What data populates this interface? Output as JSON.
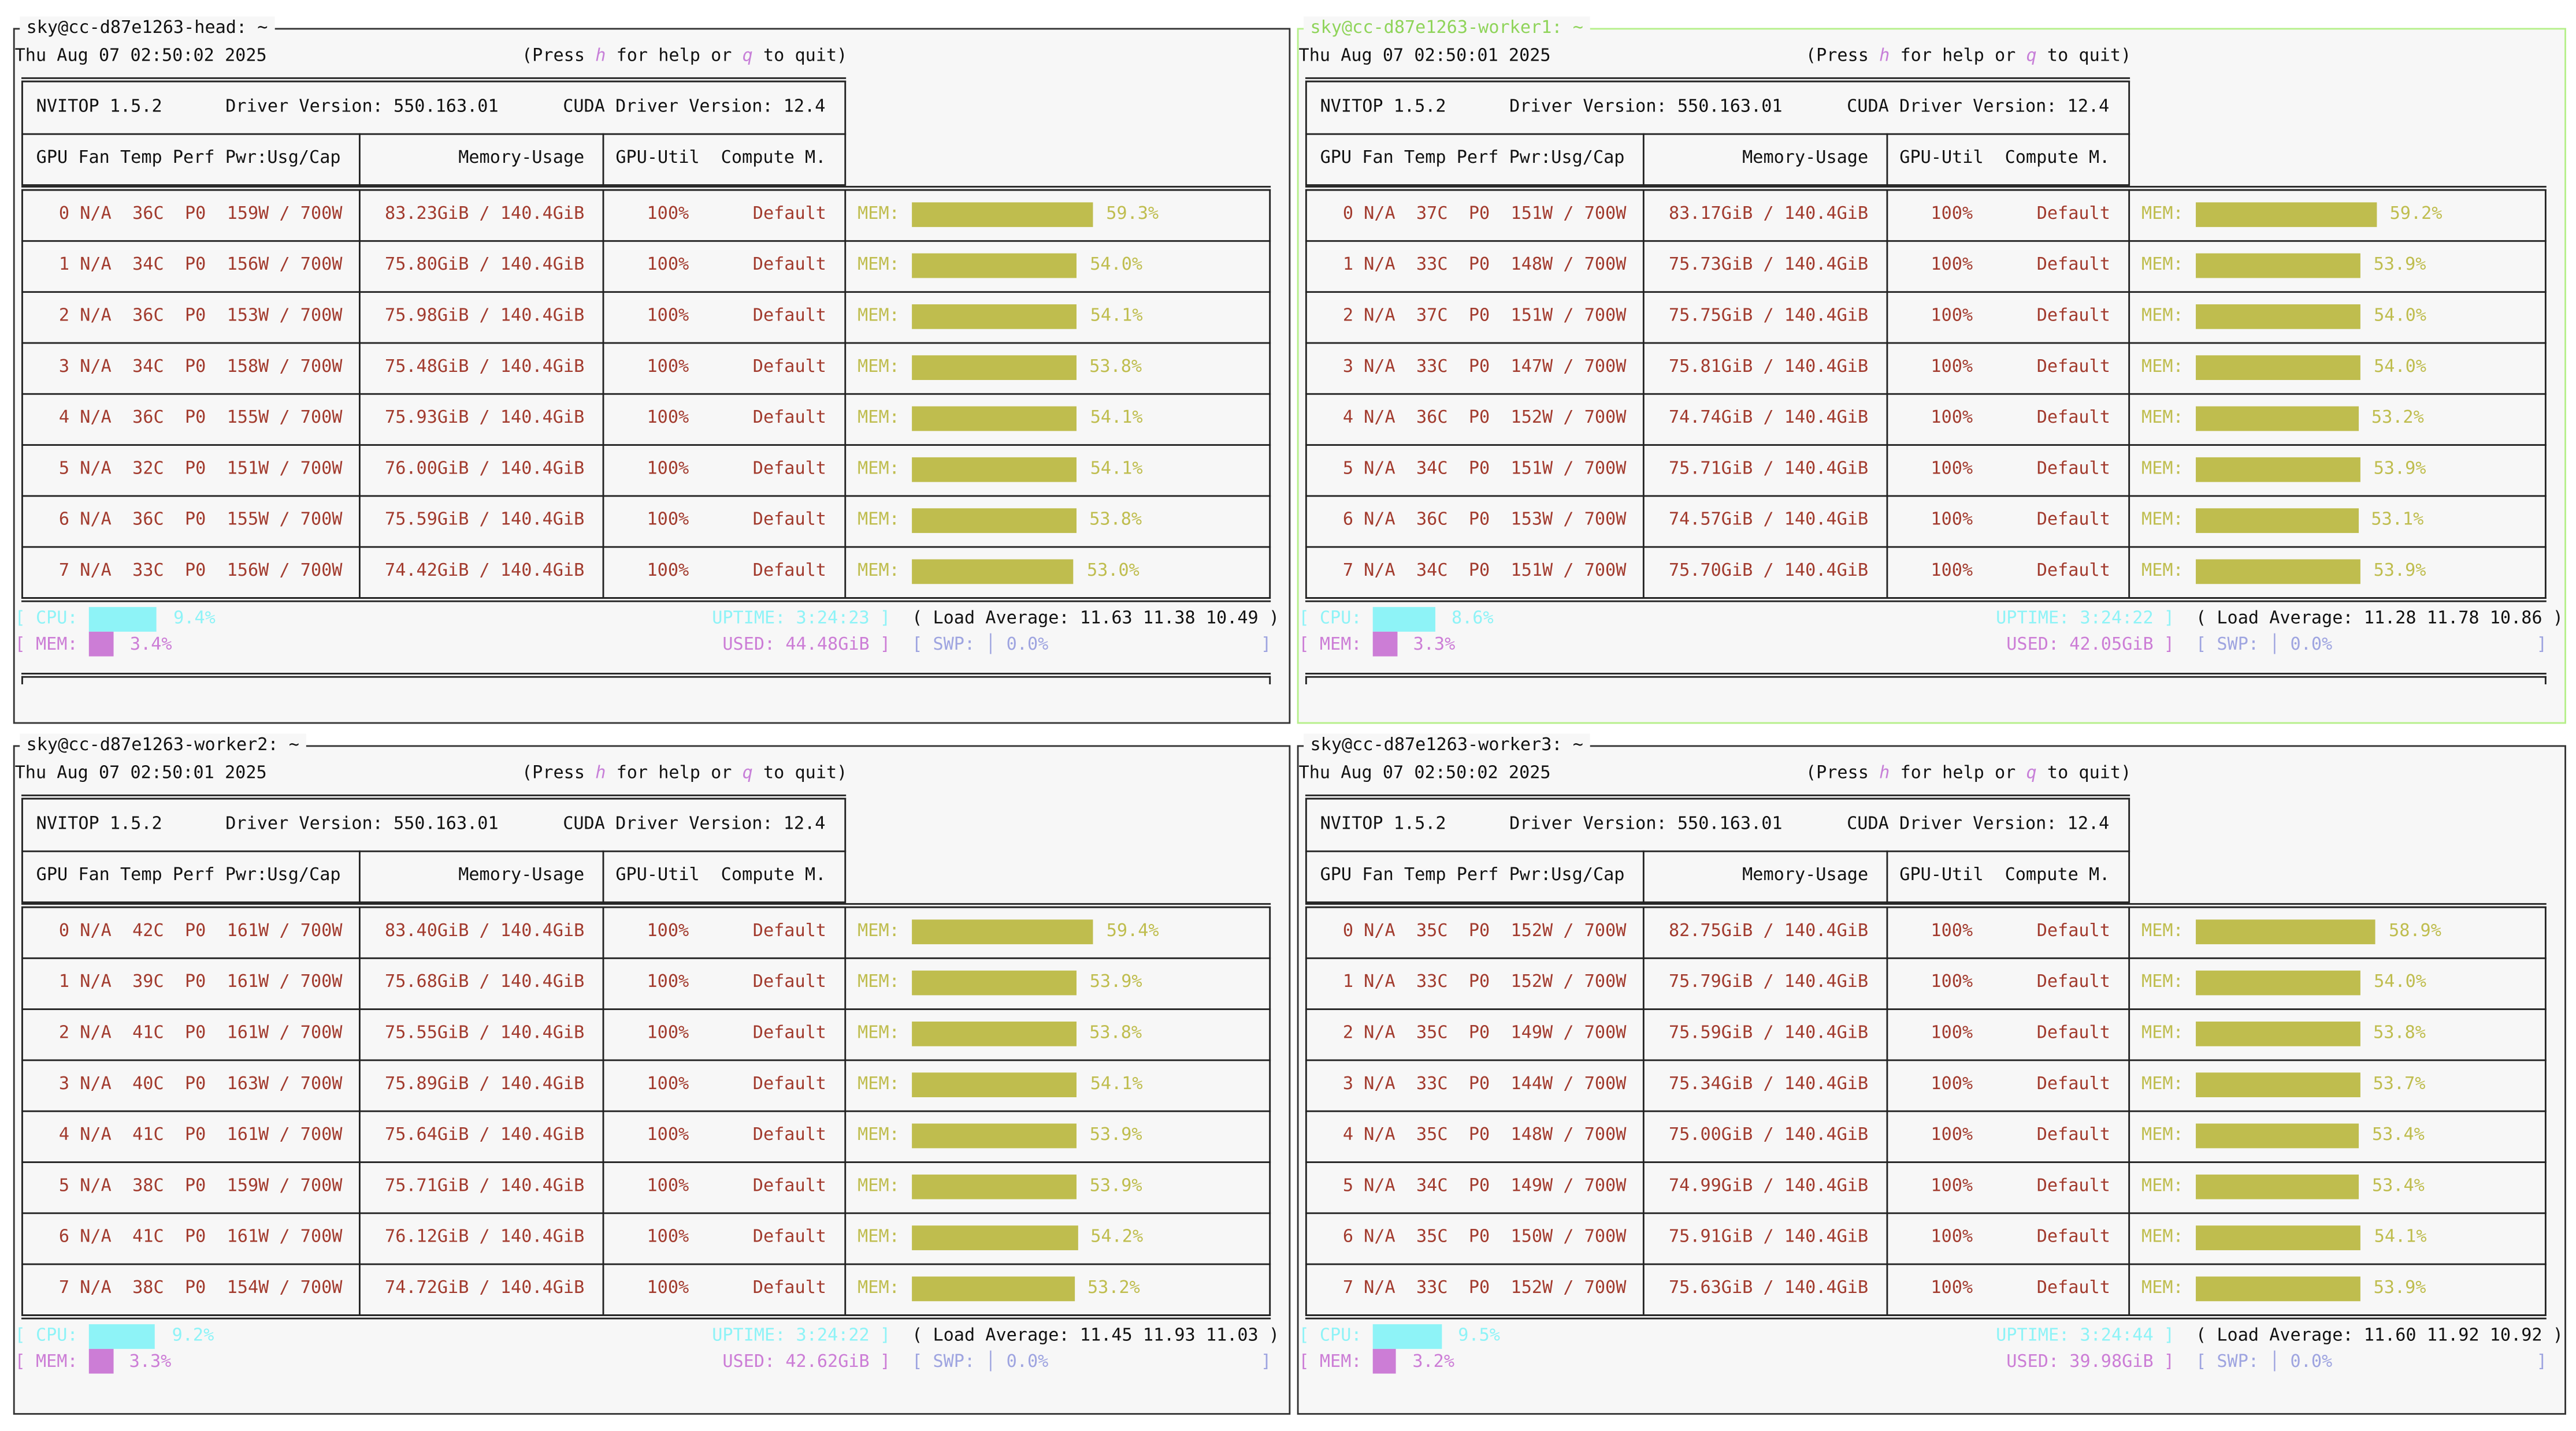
{
  "colors": {
    "text": "#a23b2e",
    "mem_bar": "#bfbd4e",
    "cpu": "#8ef3f7",
    "mem": "#cc7dd6",
    "swp": "#9ea4e0",
    "active_border": "#b6f08a",
    "background": "#f7f7f7"
  },
  "help": {
    "pre": "(Press ",
    "h": "h",
    "mid": " for help or ",
    "q": "q",
    "post": " to quit)"
  },
  "headers": {
    "gpu": "GPU Fan Temp Perf Pwr:Usg/Cap",
    "mem": "Memory-Usage",
    "util": "GPU-Util",
    "compute": "Compute M.",
    "mem_label": "MEM:"
  },
  "panels": [
    {
      "title": "sky@cc-d87e1263-head: ~",
      "active": false,
      "datetime": "Thu Aug 07 02:50:02 2025",
      "nvitop": "NVITOP 1.5.2",
      "driver": "Driver Version: 550.163.01",
      "cuda": "CUDA Driver Version: 12.4",
      "gpus": [
        [
          "0",
          "N/A",
          "36C",
          "P0",
          "159W",
          "700W",
          "83.23GiB",
          "140.4GiB",
          "100%",
          "Default",
          59.3
        ],
        [
          "1",
          "N/A",
          "34C",
          "P0",
          "156W",
          "700W",
          "75.80GiB",
          "140.4GiB",
          "100%",
          "Default",
          54.0
        ],
        [
          "2",
          "N/A",
          "36C",
          "P0",
          "153W",
          "700W",
          "75.98GiB",
          "140.4GiB",
          "100%",
          "Default",
          54.1
        ],
        [
          "3",
          "N/A",
          "34C",
          "P0",
          "158W",
          "700W",
          "75.48GiB",
          "140.4GiB",
          "100%",
          "Default",
          53.8
        ],
        [
          "4",
          "N/A",
          "36C",
          "P0",
          "155W",
          "700W",
          "75.93GiB",
          "140.4GiB",
          "100%",
          "Default",
          54.1
        ],
        [
          "5",
          "N/A",
          "32C",
          "P0",
          "151W",
          "700W",
          "76.00GiB",
          "140.4GiB",
          "100%",
          "Default",
          54.1
        ],
        [
          "6",
          "N/A",
          "36C",
          "P0",
          "155W",
          "700W",
          "75.59GiB",
          "140.4GiB",
          "100%",
          "Default",
          53.8
        ],
        [
          "7",
          "N/A",
          "33C",
          "P0",
          "156W",
          "700W",
          "74.42GiB",
          "140.4GiB",
          "100%",
          "Default",
          53.0
        ]
      ],
      "cpu_pct": 9.4,
      "mem_pct": 3.4,
      "uptime": "3:24:23",
      "used": "44.48GiB",
      "load": "11.63 11.38 10.49",
      "swp_pct": "0.0%"
    },
    {
      "title": "sky@cc-d87e1263-worker1: ~",
      "active": true,
      "datetime": "Thu Aug 07 02:50:01 2025",
      "nvitop": "NVITOP 1.5.2",
      "driver": "Driver Version: 550.163.01",
      "cuda": "CUDA Driver Version: 12.4",
      "gpus": [
        [
          "0",
          "N/A",
          "37C",
          "P0",
          "151W",
          "700W",
          "83.17GiB",
          "140.4GiB",
          "100%",
          "Default",
          59.2
        ],
        [
          "1",
          "N/A",
          "33C",
          "P0",
          "148W",
          "700W",
          "75.73GiB",
          "140.4GiB",
          "100%",
          "Default",
          53.9
        ],
        [
          "2",
          "N/A",
          "37C",
          "P0",
          "151W",
          "700W",
          "75.75GiB",
          "140.4GiB",
          "100%",
          "Default",
          54.0
        ],
        [
          "3",
          "N/A",
          "33C",
          "P0",
          "147W",
          "700W",
          "75.81GiB",
          "140.4GiB",
          "100%",
          "Default",
          54.0
        ],
        [
          "4",
          "N/A",
          "36C",
          "P0",
          "152W",
          "700W",
          "74.74GiB",
          "140.4GiB",
          "100%",
          "Default",
          53.2
        ],
        [
          "5",
          "N/A",
          "34C",
          "P0",
          "151W",
          "700W",
          "75.71GiB",
          "140.4GiB",
          "100%",
          "Default",
          53.9
        ],
        [
          "6",
          "N/A",
          "36C",
          "P0",
          "153W",
          "700W",
          "74.57GiB",
          "140.4GiB",
          "100%",
          "Default",
          53.1
        ],
        [
          "7",
          "N/A",
          "34C",
          "P0",
          "151W",
          "700W",
          "75.70GiB",
          "140.4GiB",
          "100%",
          "Default",
          53.9
        ]
      ],
      "cpu_pct": 8.6,
      "mem_pct": 3.3,
      "uptime": "3:24:22",
      "used": "42.05GiB",
      "load": "11.28 11.78 10.86",
      "swp_pct": "0.0%"
    },
    {
      "title": "sky@cc-d87e1263-worker2: ~",
      "active": false,
      "datetime": "Thu Aug 07 02:50:01 2025",
      "nvitop": "NVITOP 1.5.2",
      "driver": "Driver Version: 550.163.01",
      "cuda": "CUDA Driver Version: 12.4",
      "gpus": [
        [
          "0",
          "N/A",
          "42C",
          "P0",
          "161W",
          "700W",
          "83.40GiB",
          "140.4GiB",
          "100%",
          "Default",
          59.4
        ],
        [
          "1",
          "N/A",
          "39C",
          "P0",
          "161W",
          "700W",
          "75.68GiB",
          "140.4GiB",
          "100%",
          "Default",
          53.9
        ],
        [
          "2",
          "N/A",
          "41C",
          "P0",
          "161W",
          "700W",
          "75.55GiB",
          "140.4GiB",
          "100%",
          "Default",
          53.8
        ],
        [
          "3",
          "N/A",
          "40C",
          "P0",
          "163W",
          "700W",
          "75.89GiB",
          "140.4GiB",
          "100%",
          "Default",
          54.1
        ],
        [
          "4",
          "N/A",
          "41C",
          "P0",
          "161W",
          "700W",
          "75.64GiB",
          "140.4GiB",
          "100%",
          "Default",
          53.9
        ],
        [
          "5",
          "N/A",
          "38C",
          "P0",
          "159W",
          "700W",
          "75.71GiB",
          "140.4GiB",
          "100%",
          "Default",
          53.9
        ],
        [
          "6",
          "N/A",
          "41C",
          "P0",
          "161W",
          "700W",
          "76.12GiB",
          "140.4GiB",
          "100%",
          "Default",
          54.2
        ],
        [
          "7",
          "N/A",
          "38C",
          "P0",
          "154W",
          "700W",
          "74.72GiB",
          "140.4GiB",
          "100%",
          "Default",
          53.2
        ]
      ],
      "cpu_pct": 9.2,
      "mem_pct": 3.3,
      "uptime": "3:24:22",
      "used": "42.62GiB",
      "load": "11.45 11.93 11.03",
      "swp_pct": "0.0%"
    },
    {
      "title": "sky@cc-d87e1263-worker3: ~",
      "active": false,
      "datetime": "Thu Aug 07 02:50:02 2025",
      "nvitop": "NVITOP 1.5.2",
      "driver": "Driver Version: 550.163.01",
      "cuda": "CUDA Driver Version: 12.4",
      "gpus": [
        [
          "0",
          "N/A",
          "35C",
          "P0",
          "152W",
          "700W",
          "82.75GiB",
          "140.4GiB",
          "100%",
          "Default",
          58.9
        ],
        [
          "1",
          "N/A",
          "33C",
          "P0",
          "152W",
          "700W",
          "75.79GiB",
          "140.4GiB",
          "100%",
          "Default",
          54.0
        ],
        [
          "2",
          "N/A",
          "35C",
          "P0",
          "149W",
          "700W",
          "75.59GiB",
          "140.4GiB",
          "100%",
          "Default",
          53.8
        ],
        [
          "3",
          "N/A",
          "33C",
          "P0",
          "144W",
          "700W",
          "75.34GiB",
          "140.4GiB",
          "100%",
          "Default",
          53.7
        ],
        [
          "4",
          "N/A",
          "35C",
          "P0",
          "148W",
          "700W",
          "75.00GiB",
          "140.4GiB",
          "100%",
          "Default",
          53.4
        ],
        [
          "5",
          "N/A",
          "34C",
          "P0",
          "149W",
          "700W",
          "74.99GiB",
          "140.4GiB",
          "100%",
          "Default",
          53.4
        ],
        [
          "6",
          "N/A",
          "35C",
          "P0",
          "150W",
          "700W",
          "75.91GiB",
          "140.4GiB",
          "100%",
          "Default",
          54.1
        ],
        [
          "7",
          "N/A",
          "33C",
          "P0",
          "152W",
          "700W",
          "75.63GiB",
          "140.4GiB",
          "100%",
          "Default",
          53.9
        ]
      ],
      "cpu_pct": 9.5,
      "mem_pct": 3.2,
      "uptime": "3:24:44",
      "used": "39.98GiB",
      "load": "11.60 11.92 10.92",
      "swp_pct": "0.0%"
    }
  ],
  "labels": {
    "cpu": "CPU:",
    "mem": "MEM:",
    "uptime": "UPTIME:",
    "used": "USED:",
    "load": "Load Average:",
    "swp": "SWP:"
  }
}
